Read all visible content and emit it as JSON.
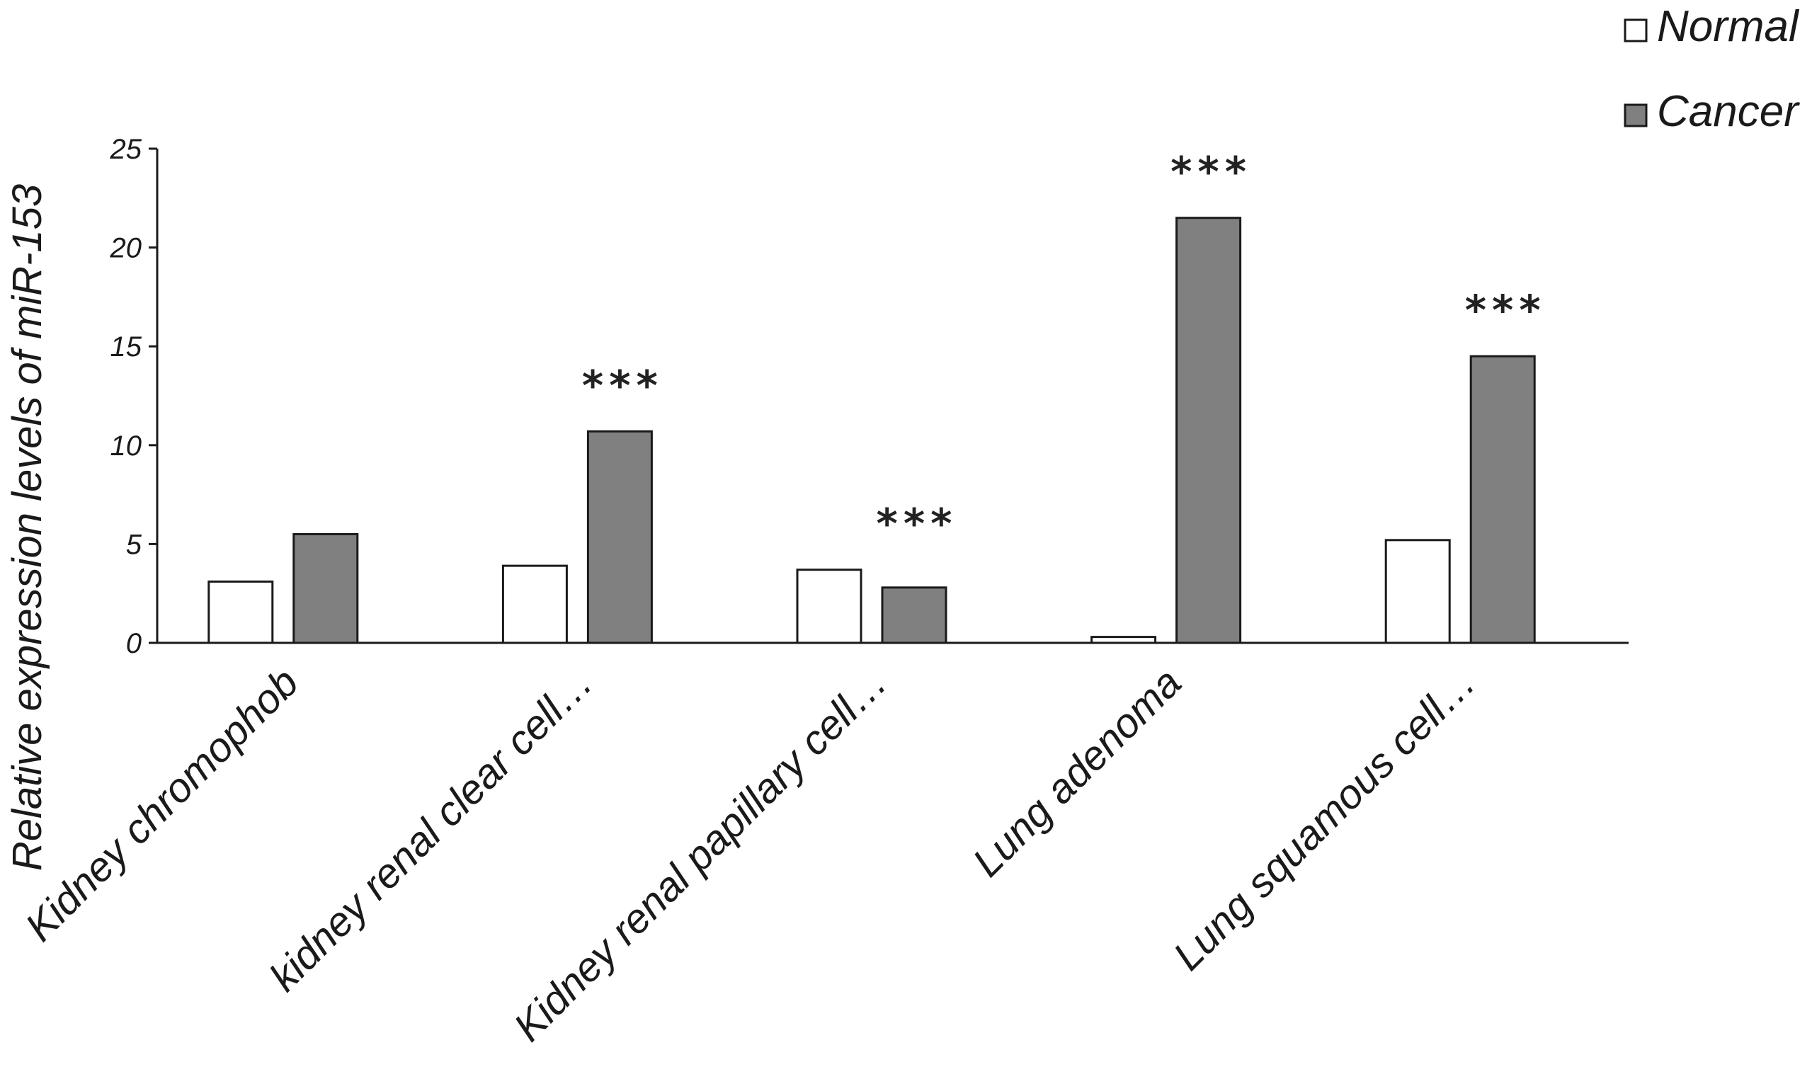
{
  "chart_data": {
    "type": "bar",
    "categories": [
      "Kidney chromophob",
      "kidney renal clear cell…",
      "Kidney renal papillary cell…",
      "Lung adenoma",
      "Lung squamous cell…"
    ],
    "series": [
      {
        "name": "Normal",
        "color": "#ffffff",
        "values": [
          3.1,
          3.9,
          3.7,
          0.3,
          5.2
        ]
      },
      {
        "name": "Cancer",
        "color": "#808080",
        "values": [
          5.5,
          10.7,
          2.8,
          21.5,
          14.5
        ]
      }
    ],
    "annotations": [
      "",
      "***",
      "***",
      "***",
      "***"
    ],
    "ylabel": "Relative expression levels of miR-153",
    "xlabel": "",
    "ylim": [
      0,
      25
    ],
    "yticks": [
      0,
      5,
      10,
      15,
      20,
      25
    ],
    "grid": false,
    "legend_position": "top-right"
  }
}
